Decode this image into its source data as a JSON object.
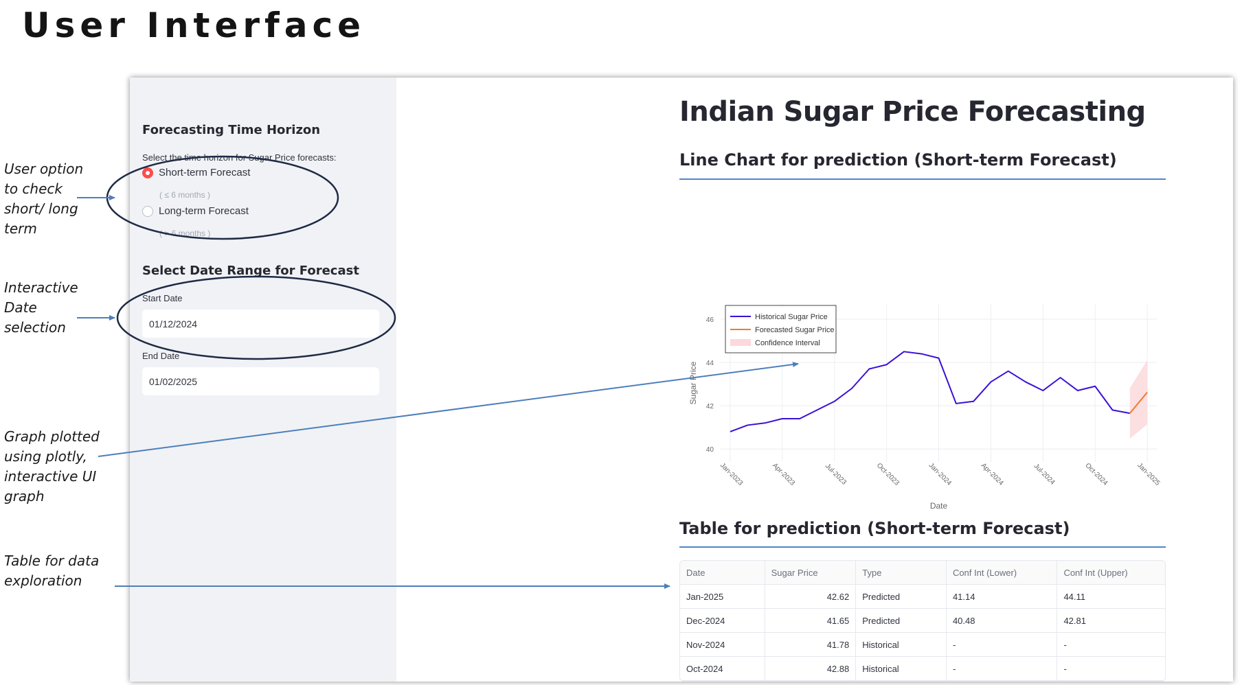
{
  "slide_title": "User Interface",
  "sidebar": {
    "horizon_heading": "Forecasting Time Horizon",
    "horizon_prompt": "Select the time horizon for Sugar Price forecasts:",
    "options": [
      {
        "label": "Short-term Forecast",
        "caption": "( ≤ 6 months )",
        "selected": true
      },
      {
        "label": "Long-term Forecast",
        "caption": "( > 6 months )",
        "selected": false
      }
    ],
    "date_heading": "Select Date Range for Forecast",
    "start_label": "Start Date",
    "start_value": "01/12/2024",
    "end_label": "End Date",
    "end_value": "01/02/2025"
  },
  "main": {
    "title": "Indian Sugar Price Forecasting",
    "chart_header": "Line Chart for prediction (Short-term Forecast)",
    "table_header": "Table for prediction (Short-term Forecast)"
  },
  "chart_data": {
    "type": "line",
    "xlabel": "Date",
    "ylabel": "Sugar Price",
    "x_ticks": [
      "Jan-2023",
      "Apr-2023",
      "Jul-2023",
      "Oct-2023",
      "Jan-2024",
      "Apr-2024",
      "Jul-2024",
      "Oct-2024",
      "Jan-2025"
    ],
    "y_ticks": [
      40,
      42,
      44,
      46
    ],
    "ylim": [
      39.4,
      46.7
    ],
    "legend": {
      "position": "top-left",
      "entries": [
        "Historical Sugar Price",
        "Forecasted Sugar Price",
        "Confidence Interval"
      ]
    },
    "grid": true,
    "series": [
      {
        "name": "Historical Sugar Price",
        "color": "#3b0fd6",
        "points": [
          [
            "2023-01",
            40.8
          ],
          [
            "2023-02",
            41.1
          ],
          [
            "2023-03",
            41.2
          ],
          [
            "2023-04",
            41.4
          ],
          [
            "2023-05",
            41.4
          ],
          [
            "2023-06",
            41.8
          ],
          [
            "2023-07",
            42.2
          ],
          [
            "2023-08",
            42.8
          ],
          [
            "2023-09",
            43.7
          ],
          [
            "2023-10",
            43.9
          ],
          [
            "2023-11",
            44.5
          ],
          [
            "2023-12",
            44.4
          ],
          [
            "2024-01",
            44.2
          ],
          [
            "2024-02",
            42.1
          ],
          [
            "2024-03",
            42.2
          ],
          [
            "2024-04",
            43.1
          ],
          [
            "2024-05",
            43.6
          ],
          [
            "2024-06",
            43.1
          ],
          [
            "2024-07",
            42.7
          ],
          [
            "2024-08",
            43.3
          ],
          [
            "2024-09",
            42.7
          ],
          [
            "2024-10",
            42.9
          ],
          [
            "2024-11",
            41.8
          ],
          [
            "2024-12",
            41.65
          ]
        ]
      },
      {
        "name": "Forecasted Sugar Price",
        "color": "#ef7b2c",
        "points": [
          [
            "2024-12",
            41.65
          ],
          [
            "2025-01",
            42.62
          ]
        ]
      }
    ],
    "confidence_interval": {
      "color": "#fbd9dc",
      "points": [
        [
          "2024-12",
          40.48,
          42.81
        ],
        [
          "2025-01",
          41.14,
          44.11
        ]
      ]
    }
  },
  "table": {
    "columns": [
      "Date",
      "Sugar Price",
      "Type",
      "Conf Int (Lower)",
      "Conf Int (Upper)"
    ],
    "rows": [
      [
        "Jan-2025",
        "42.62",
        "Predicted",
        "41.14",
        "44.11"
      ],
      [
        "Dec-2024",
        "41.65",
        "Predicted",
        "40.48",
        "42.81"
      ],
      [
        "Nov-2024",
        "41.78",
        "Historical",
        "-",
        "-"
      ],
      [
        "Oct-2024",
        "42.88",
        "Historical",
        "-",
        "-"
      ]
    ]
  },
  "annotations": {
    "radio_note": [
      "User option",
      "to check",
      "short/ long",
      "term"
    ],
    "date_note": [
      "Interactive",
      "Date",
      "selection"
    ],
    "graph_note": [
      "Graph plotted",
      "using plotly,",
      "interactive UI",
      "graph"
    ],
    "table_note": [
      "Table for data",
      "exploration"
    ]
  },
  "colors": {
    "accent": "#ff4b4b",
    "divider": "#4d86c7",
    "annotation_line": "#4d7ebb",
    "ellipse": "#1f2a44"
  }
}
